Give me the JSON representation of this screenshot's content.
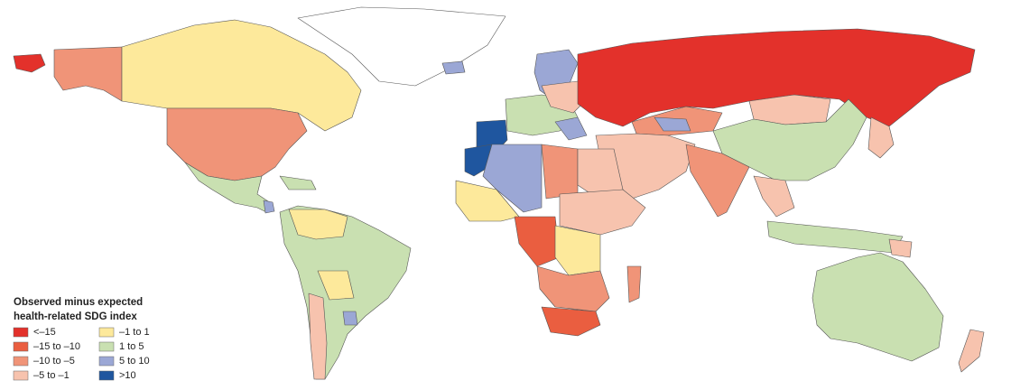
{
  "legend": {
    "title": [
      "Observed minus expected",
      "health-related SDG index"
    ],
    "items": [
      {
        "label": "<–15",
        "color": "#e3312b"
      },
      {
        "label": "–15 to –10",
        "color": "#ea5e40"
      },
      {
        "label": "–10 to –5",
        "color": "#f09478"
      },
      {
        "label": "–5 to –1",
        "color": "#f7c3ae"
      },
      {
        "label": "–1 to 1",
        "color": "#fde99b"
      },
      {
        "label": "1 to 5",
        "color": "#c9e0b1"
      },
      {
        "label": "5 to 10",
        "color": "#9ba7d5"
      },
      {
        "label": ">10",
        "color": "#1f569f"
      }
    ]
  }
}
